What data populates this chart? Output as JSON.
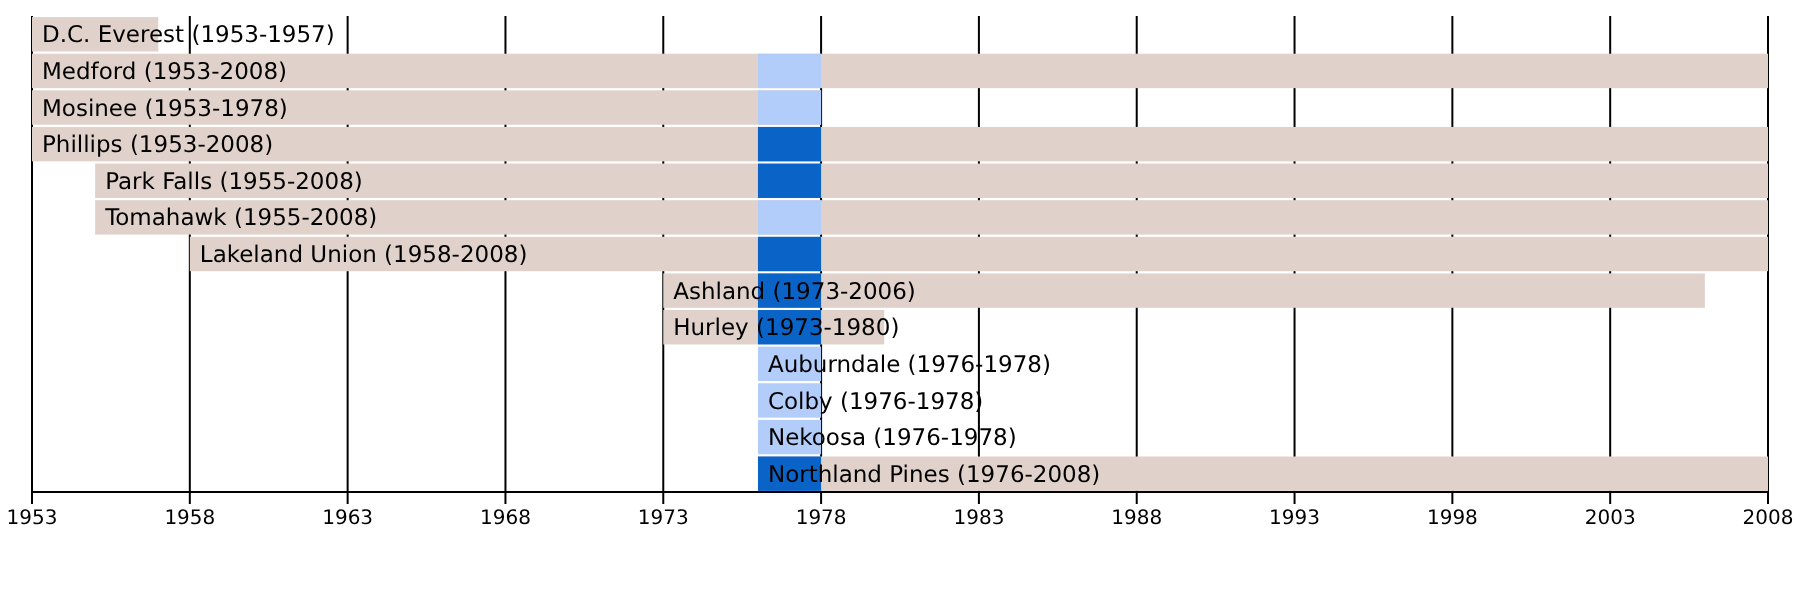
{
  "chart_data": {
    "type": "bar",
    "orientation": "horizontal",
    "categories": [
      "D.C. Everest (1953-1957)",
      "Medford (1953-2008)",
      "Mosinee (1953-1978)",
      "Phillips (1953-2008)",
      "Park Falls (1955-2008)",
      "Tomahawk (1955-2008)",
      "Lakeland Union (1958-2008)",
      "Ashland (1973-2006)",
      "Hurley (1973-1980)",
      "Auburndale (1976-1978)",
      "Colby (1976-1978)",
      "Nekoosa (1976-1978)",
      "Northland Pines (1976-2008)"
    ],
    "series": [
      {
        "color": "#e0d2ca",
        "base": [
          1953,
          1953,
          1953,
          1953,
          1955,
          1955,
          1958,
          1973,
          1973,
          null,
          null,
          null,
          1976
        ],
        "values": [
          4,
          55,
          25,
          55,
          53,
          53,
          50,
          33,
          7,
          null,
          null,
          null,
          32
        ]
      },
      {
        "color": "#b3cdfb",
        "base": [
          null,
          1976,
          1976,
          null,
          null,
          1976,
          null,
          null,
          null,
          1976,
          1976,
          1976,
          null
        ],
        "values": [
          null,
          2,
          2,
          null,
          null,
          2,
          null,
          null,
          null,
          2,
          2,
          2,
          null
        ]
      },
      {
        "color": "#0a64c8",
        "base": [
          null,
          null,
          null,
          1976,
          1976,
          null,
          1976,
          1976,
          1976,
          null,
          null,
          null,
          1976
        ],
        "values": [
          null,
          null,
          null,
          2,
          2,
          null,
          2,
          2,
          2,
          null,
          null,
          null,
          2
        ]
      }
    ],
    "xlim": [
      1953,
      2008
    ],
    "xticks": [
      1953,
      1958,
      1963,
      1968,
      1973,
      1978,
      1983,
      1988,
      1993,
      1998,
      2003,
      2008
    ],
    "grid": "x"
  }
}
